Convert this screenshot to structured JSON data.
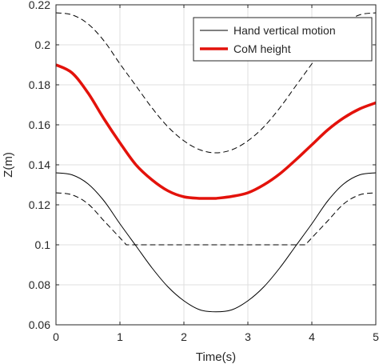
{
  "chart_data": {
    "type": "line",
    "xlabel": "Time(s)",
    "ylabel": "Z(m)",
    "xlim": [
      0,
      5
    ],
    "ylim": [
      0.06,
      0.22
    ],
    "xticks": [
      0,
      1,
      2,
      3,
      4,
      5
    ],
    "xtick_labels": [
      "0",
      "1",
      "2",
      "3",
      "4",
      "5"
    ],
    "yticks": [
      0.06,
      0.08,
      0.1,
      0.12,
      0.14,
      0.16,
      0.18,
      0.2,
      0.22
    ],
    "ytick_labels": [
      "0.06",
      "0.08",
      "0.1",
      "0.12",
      "0.14",
      "0.16",
      "0.18",
      "0.2",
      "0.22"
    ],
    "grid": true,
    "legend_position": "top-right",
    "legend": [
      "Hand vertical motion",
      "CoM height"
    ],
    "series": [
      {
        "name": "Hand vertical motion",
        "color": "#000000",
        "style": "solid",
        "x": [
          0,
          0.25,
          0.5,
          0.75,
          1.0,
          1.25,
          1.5,
          1.75,
          2.0,
          2.25,
          2.5,
          2.75,
          3.0,
          3.25,
          3.5,
          3.75,
          4.0,
          4.25,
          4.5,
          4.75,
          5.0
        ],
        "y": [
          0.136,
          0.135,
          0.1305,
          0.122,
          0.1105,
          0.0995,
          0.0885,
          0.079,
          0.072,
          0.0675,
          0.0665,
          0.0675,
          0.072,
          0.079,
          0.0885,
          0.0995,
          0.1105,
          0.122,
          0.1305,
          0.135,
          0.136
        ]
      },
      {
        "name": "CoM height",
        "color": "#e3120b",
        "style": "solid-thick",
        "x": [
          0,
          0.25,
          0.5,
          0.75,
          1.0,
          1.25,
          1.5,
          1.75,
          2.0,
          2.25,
          2.5,
          2.75,
          3.0,
          3.25,
          3.5,
          3.75,
          4.0,
          4.25,
          4.5,
          4.75,
          5.0
        ],
        "y": [
          0.19,
          0.186,
          0.176,
          0.163,
          0.151,
          0.14,
          0.1325,
          0.127,
          0.124,
          0.1232,
          0.1232,
          0.1242,
          0.126,
          0.13,
          0.1355,
          0.1425,
          0.15,
          0.1575,
          0.1635,
          0.168,
          0.171
        ]
      },
      {
        "color": "#000000",
        "style": "dashed",
        "x": [
          0,
          0.25,
          0.5,
          0.75,
          1.0,
          1.25,
          1.5,
          1.75,
          2.0,
          2.25,
          2.5,
          2.75,
          3.0,
          3.25,
          3.5,
          3.75,
          4.0,
          4.25,
          4.5,
          4.75,
          5.0
        ],
        "y": [
          0.216,
          0.215,
          0.2105,
          0.202,
          0.1905,
          0.1795,
          0.1685,
          0.159,
          0.152,
          0.1475,
          0.146,
          0.1475,
          0.152,
          0.159,
          0.1685,
          0.1795,
          0.1905,
          0.202,
          0.2105,
          0.215,
          0.216
        ]
      },
      {
        "color": "#000000",
        "style": "dashed",
        "x": [
          0,
          0.25,
          0.5,
          0.75,
          1.0,
          1.1,
          1.5,
          2.0,
          2.5,
          3.0,
          3.5,
          3.9,
          4.0,
          4.25,
          4.5,
          4.75,
          5.0
        ],
        "y": [
          0.126,
          0.125,
          0.1205,
          0.112,
          0.1035,
          0.1,
          0.1,
          0.1,
          0.1,
          0.1,
          0.1,
          0.1,
          0.1035,
          0.112,
          0.1205,
          0.125,
          0.126
        ]
      }
    ]
  }
}
